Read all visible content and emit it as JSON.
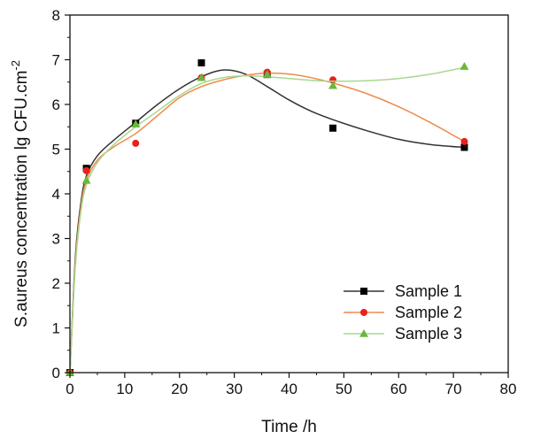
{
  "chart_data": {
    "type": "scatter",
    "xlabel": "Time /h",
    "ylabel_main": "S.aureus concentration lg CFU.cm",
    "ylabel_superscript": "-2",
    "xlim": [
      0,
      80
    ],
    "ylim": [
      0,
      8
    ],
    "x_ticks": [
      0,
      10,
      20,
      30,
      40,
      50,
      60,
      70,
      80
    ],
    "y_ticks": [
      0,
      1,
      2,
      3,
      4,
      5,
      6,
      7,
      8
    ],
    "grid": false,
    "legend_position": "bottom-right",
    "series": [
      {
        "name": "Sample 1",
        "marker": "square",
        "marker_color": "#000000",
        "line_color": "#333333",
        "points": [
          [
            0,
            0
          ],
          [
            3,
            4.57
          ],
          [
            12,
            5.58
          ],
          [
            24,
            6.93
          ],
          [
            36,
            6.67
          ],
          [
            48,
            5.47
          ],
          [
            72,
            5.04
          ]
        ],
        "fit_curve": [
          [
            0,
            0
          ],
          [
            1,
            2.6
          ],
          [
            2,
            3.8
          ],
          [
            3,
            4.4
          ],
          [
            5,
            4.85
          ],
          [
            8,
            5.2
          ],
          [
            12,
            5.6
          ],
          [
            16,
            6.0
          ],
          [
            20,
            6.35
          ],
          [
            24,
            6.62
          ],
          [
            28,
            6.77
          ],
          [
            32,
            6.68
          ],
          [
            36,
            6.4
          ],
          [
            40,
            6.1
          ],
          [
            44,
            5.85
          ],
          [
            48,
            5.66
          ],
          [
            54,
            5.42
          ],
          [
            60,
            5.22
          ],
          [
            66,
            5.1
          ],
          [
            72,
            5.04
          ]
        ]
      },
      {
        "name": "Sample 2",
        "marker": "circle",
        "marker_color": "#e8211a",
        "line_color": "#f08a4b",
        "points": [
          [
            0,
            0
          ],
          [
            3,
            4.52
          ],
          [
            12,
            5.13
          ],
          [
            24,
            6.6
          ],
          [
            36,
            6.72
          ],
          [
            48,
            6.55
          ],
          [
            72,
            5.17
          ]
        ],
        "fit_curve": [
          [
            0,
            0
          ],
          [
            1,
            2.5
          ],
          [
            2,
            3.7
          ],
          [
            3,
            4.3
          ],
          [
            5,
            4.75
          ],
          [
            8,
            5.05
          ],
          [
            12,
            5.35
          ],
          [
            16,
            5.75
          ],
          [
            20,
            6.15
          ],
          [
            24,
            6.4
          ],
          [
            28,
            6.55
          ],
          [
            32,
            6.65
          ],
          [
            36,
            6.7
          ],
          [
            40,
            6.68
          ],
          [
            44,
            6.6
          ],
          [
            48,
            6.48
          ],
          [
            54,
            6.25
          ],
          [
            60,
            5.95
          ],
          [
            66,
            5.58
          ],
          [
            72,
            5.17
          ]
        ]
      },
      {
        "name": "Sample 3",
        "marker": "triangle",
        "marker_color": "#6ab83a",
        "line_color": "#a8d890",
        "points": [
          [
            0,
            0
          ],
          [
            3,
            4.3
          ],
          [
            12,
            5.56
          ],
          [
            24,
            6.6
          ],
          [
            36,
            6.67
          ],
          [
            48,
            6.42
          ],
          [
            72,
            6.85
          ]
        ],
        "fit_curve": [
          [
            0,
            0
          ],
          [
            1,
            2.4
          ],
          [
            2,
            3.6
          ],
          [
            3,
            4.2
          ],
          [
            5,
            4.7
          ],
          [
            8,
            5.1
          ],
          [
            12,
            5.5
          ],
          [
            16,
            5.85
          ],
          [
            20,
            6.2
          ],
          [
            24,
            6.47
          ],
          [
            28,
            6.6
          ],
          [
            32,
            6.64
          ],
          [
            36,
            6.62
          ],
          [
            40,
            6.58
          ],
          [
            44,
            6.54
          ],
          [
            48,
            6.52
          ],
          [
            54,
            6.53
          ],
          [
            60,
            6.58
          ],
          [
            66,
            6.68
          ],
          [
            72,
            6.83
          ]
        ]
      }
    ]
  }
}
